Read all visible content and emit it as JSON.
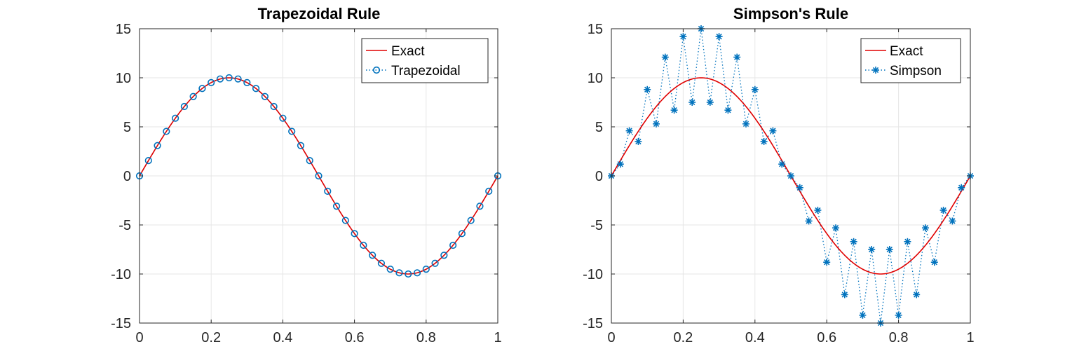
{
  "colors": {
    "exact": "#e00000",
    "approx": "#0072bd",
    "grid": "#e6e6e6",
    "axis": "#262626"
  },
  "chart_data": [
    {
      "type": "line",
      "title": "Trapezoidal Rule",
      "xlabel": "",
      "ylabel": "",
      "xlim": [
        0,
        1
      ],
      "ylim": [
        -15,
        15
      ],
      "xticks": [
        0,
        0.2,
        0.4,
        0.6,
        0.8,
        1
      ],
      "xtick_labels": [
        "0",
        "0.2",
        "0.4",
        "0.6",
        "0.8",
        "1"
      ],
      "yticks": [
        -15,
        -10,
        -5,
        0,
        5,
        10,
        15
      ],
      "ytick_labels": [
        "-15",
        "-10",
        "-5",
        "0",
        "5",
        "10",
        "15"
      ],
      "grid": true,
      "legend_position": "top-right",
      "series": [
        {
          "name": "Exact",
          "style": "solid-line",
          "function": "10*sin(2*pi*x)"
        },
        {
          "name": "Trapezoidal",
          "style": "dotted-circle-markers",
          "x": [
            0,
            0.025,
            0.05,
            0.075,
            0.1,
            0.125,
            0.15,
            0.175,
            0.2,
            0.225,
            0.25,
            0.275,
            0.3,
            0.325,
            0.35,
            0.375,
            0.4,
            0.425,
            0.45,
            0.475,
            0.5,
            0.525,
            0.55,
            0.575,
            0.6,
            0.625,
            0.65,
            0.675,
            0.7,
            0.725,
            0.75,
            0.775,
            0.8,
            0.825,
            0.85,
            0.875,
            0.9,
            0.925,
            0.95,
            0.975,
            1
          ],
          "y": [
            0,
            1.56,
            3.09,
            4.54,
            5.88,
            7.07,
            8.09,
            8.91,
            9.51,
            9.88,
            10,
            9.88,
            9.51,
            8.91,
            8.09,
            7.07,
            5.88,
            4.54,
            3.09,
            1.56,
            0,
            -1.56,
            -3.09,
            -4.54,
            -5.88,
            -7.07,
            -8.09,
            -8.91,
            -9.51,
            -9.88,
            -10,
            -9.88,
            -9.51,
            -8.91,
            -8.09,
            -7.07,
            -5.88,
            -4.54,
            -3.09,
            -1.56,
            0
          ]
        }
      ]
    },
    {
      "type": "line",
      "title": "Simpson's Rule",
      "xlabel": "",
      "ylabel": "",
      "xlim": [
        0,
        1
      ],
      "ylim": [
        -15,
        15
      ],
      "xticks": [
        0,
        0.2,
        0.4,
        0.6,
        0.8,
        1
      ],
      "xtick_labels": [
        "0",
        "0.2",
        "0.4",
        "0.6",
        "0.8",
        "1"
      ],
      "yticks": [
        -15,
        -10,
        -5,
        0,
        5,
        10,
        15
      ],
      "ytick_labels": [
        "-15",
        "-10",
        "-5",
        "0",
        "5",
        "10",
        "15"
      ],
      "grid": true,
      "legend_position": "top-right",
      "series": [
        {
          "name": "Exact",
          "style": "solid-line",
          "function": "10*sin(2*pi*x)"
        },
        {
          "name": "Simpson",
          "style": "dotted-star-markers",
          "x": [
            0,
            0.025,
            0.05,
            0.075,
            0.1,
            0.125,
            0.15,
            0.175,
            0.2,
            0.225,
            0.25,
            0.275,
            0.3,
            0.325,
            0.35,
            0.375,
            0.4,
            0.425,
            0.45,
            0.475,
            0.5,
            0.525,
            0.55,
            0.575,
            0.6,
            0.625,
            0.65,
            0.675,
            0.7,
            0.725,
            0.75,
            0.775,
            0.8,
            0.825,
            0.85,
            0.875,
            0.9,
            0.925,
            0.95,
            0.975,
            1
          ],
          "y": [
            0,
            1.2,
            4.6,
            3.5,
            8.8,
            5.3,
            12.1,
            6.7,
            14.2,
            7.5,
            15,
            7.5,
            14.2,
            6.7,
            12.1,
            5.3,
            8.8,
            3.5,
            4.6,
            1.2,
            0,
            -1.2,
            -4.6,
            -3.5,
            -8.8,
            -5.3,
            -12.1,
            -6.7,
            -14.2,
            -7.5,
            -15,
            -7.5,
            -14.2,
            -6.7,
            -12.1,
            -5.3,
            -8.8,
            -3.5,
            -4.6,
            -1.2,
            0
          ]
        }
      ]
    }
  ]
}
